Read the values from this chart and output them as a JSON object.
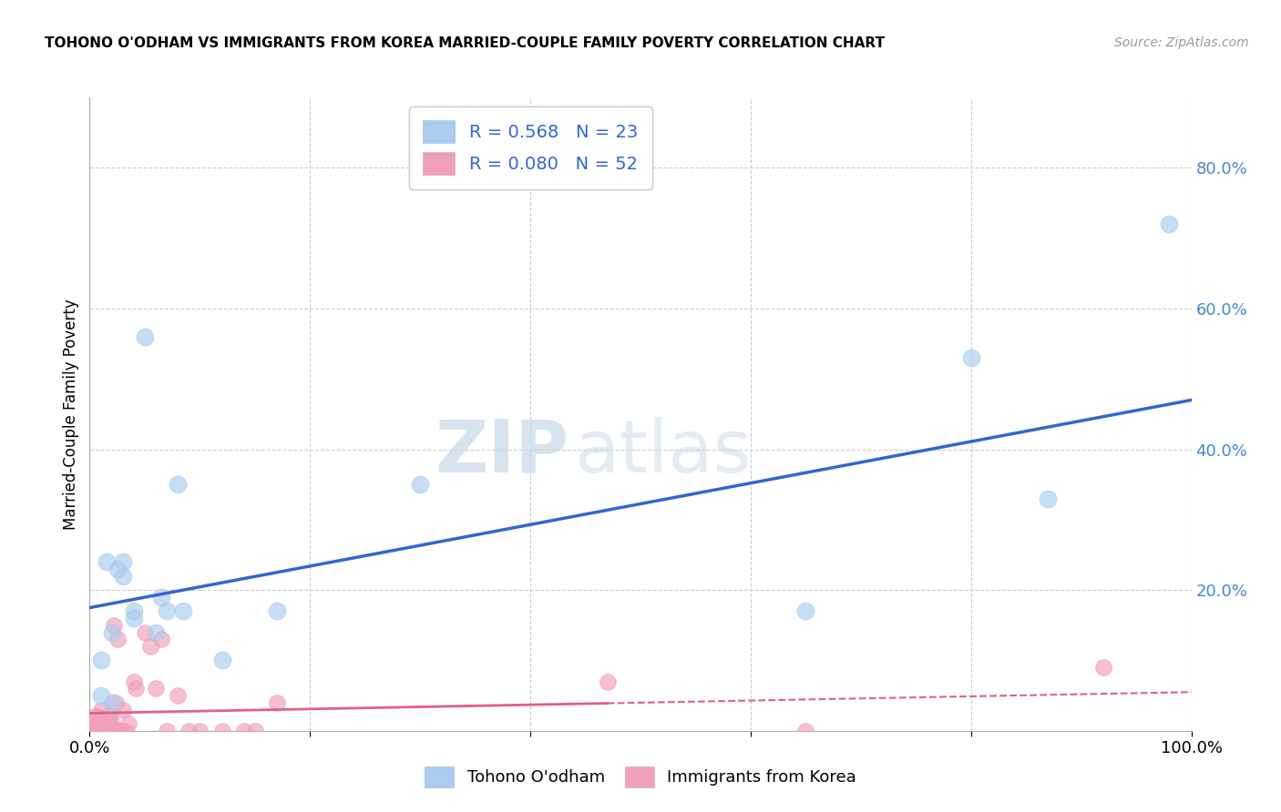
{
  "title": "TOHONO O'ODHAM VS IMMIGRANTS FROM KOREA MARRIED-COUPLE FAMILY POVERTY CORRELATION CHART",
  "source": "Source: ZipAtlas.com",
  "ylabel": "Married-Couple Family Poverty",
  "yticks": [
    0.0,
    0.2,
    0.4,
    0.6,
    0.8
  ],
  "ytick_labels": [
    "",
    "20.0%",
    "40.0%",
    "60.0%",
    "80.0%"
  ],
  "legend1_label": "R = 0.568   N = 23",
  "legend2_label": "R = 0.080   N = 52",
  "series1_label": "Tohono O'odham",
  "series2_label": "Immigrants from Korea",
  "series1_color": "#aaccee",
  "series2_color": "#f0a0b8",
  "line1_color": "#3366cc",
  "line2_color": "#e06080",
  "watermark_zip": "ZIP",
  "watermark_atlas": "atlas",
  "blue_points_x": [
    0.01,
    0.01,
    0.015,
    0.02,
    0.02,
    0.025,
    0.03,
    0.03,
    0.04,
    0.04,
    0.05,
    0.06,
    0.065,
    0.07,
    0.08,
    0.085,
    0.12,
    0.17,
    0.65,
    0.8,
    0.87,
    0.98,
    0.3
  ],
  "blue_points_y": [
    0.05,
    0.1,
    0.24,
    0.04,
    0.14,
    0.23,
    0.22,
    0.24,
    0.16,
    0.17,
    0.56,
    0.14,
    0.19,
    0.17,
    0.35,
    0.17,
    0.1,
    0.17,
    0.17,
    0.53,
    0.33,
    0.72,
    0.35
  ],
  "pink_points_x": [
    0.003,
    0.004,
    0.005,
    0.005,
    0.006,
    0.007,
    0.008,
    0.008,
    0.009,
    0.009,
    0.01,
    0.01,
    0.012,
    0.013,
    0.014,
    0.015,
    0.015,
    0.016,
    0.017,
    0.017,
    0.018,
    0.018,
    0.019,
    0.02,
    0.02,
    0.022,
    0.023,
    0.024,
    0.025,
    0.025,
    0.027,
    0.03,
    0.03,
    0.033,
    0.035,
    0.04,
    0.042,
    0.05,
    0.055,
    0.06,
    0.065,
    0.07,
    0.08,
    0.09,
    0.1,
    0.12,
    0.14,
    0.15,
    0.17,
    0.47,
    0.65,
    0.92
  ],
  "pink_points_y": [
    0.0,
    0.01,
    0.0,
    0.02,
    0.0,
    0.0,
    0.01,
    0.02,
    0.0,
    0.01,
    0.0,
    0.03,
    0.0,
    0.0,
    0.0,
    0.0,
    0.01,
    0.0,
    0.0,
    0.02,
    0.01,
    0.02,
    0.0,
    0.0,
    0.01,
    0.15,
    0.0,
    0.04,
    0.0,
    0.13,
    0.0,
    0.0,
    0.03,
    0.0,
    0.01,
    0.07,
    0.06,
    0.14,
    0.12,
    0.06,
    0.13,
    0.0,
    0.05,
    0.0,
    0.0,
    0.0,
    0.0,
    0.0,
    0.04,
    0.07,
    0.0,
    0.09
  ],
  "line1_x0": 0.0,
  "line1_y0": 0.175,
  "line1_x1": 1.0,
  "line1_y1": 0.47,
  "line2_x0": 0.0,
  "line2_y0": 0.025,
  "line2_x1": 1.0,
  "line2_y1": 0.055,
  "line2_solid_end": 0.47,
  "xlim": [
    0.0,
    1.0
  ],
  "ylim": [
    0.0,
    0.9
  ],
  "figsize": [
    14.06,
    8.92
  ],
  "dpi": 100
}
